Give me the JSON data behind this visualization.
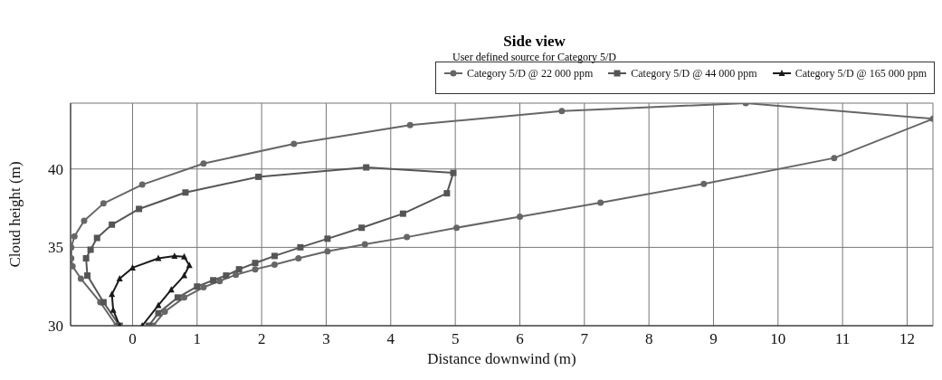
{
  "chart_data": {
    "type": "line",
    "title": "Side view",
    "subtitle": "User defined source for Category 5/D",
    "xlabel": "Distance downwind (m)",
    "ylabel": "Cloud height (m)",
    "xlim": [
      -0.96,
      12.4
    ],
    "ylim": [
      30,
      44.2
    ],
    "xticks": [
      0,
      1,
      2,
      3,
      4,
      5,
      6,
      7,
      8,
      9,
      10,
      11,
      12
    ],
    "yticks": [
      30,
      35,
      40
    ],
    "grid": true,
    "legend": "top right",
    "line_style": "solid",
    "series": [
      {
        "name": "Category 5/D @ 22 000 ppm",
        "color": "#666666",
        "marker": "circle",
        "x": [
          -0.25,
          -0.5,
          -0.8,
          -0.93,
          -0.95,
          -0.95,
          -0.9,
          -0.75,
          -0.45,
          0.15,
          1.1,
          2.5,
          4.3,
          6.65,
          9.5,
          12.4,
          10.87,
          8.85,
          7.25,
          6.0,
          5.02,
          4.25,
          3.6,
          3.02,
          2.57,
          2.2,
          1.9,
          1.6,
          1.35,
          1.1,
          0.8,
          0.5,
          0.32
        ],
        "values": [
          30,
          31.5,
          33,
          33.8,
          34.3,
          35,
          35.7,
          36.7,
          37.8,
          39,
          40.35,
          41.6,
          42.8,
          43.7,
          44.2,
          43.2,
          40.7,
          39.05,
          37.85,
          36.95,
          36.25,
          35.65,
          35.2,
          34.75,
          34.3,
          33.9,
          33.6,
          33.25,
          32.85,
          32.45,
          31.8,
          30.9,
          30
        ]
      },
      {
        "name": "Category 5/D @ 44 000 ppm",
        "color": "#555555",
        "marker": "square",
        "x": [
          -0.2,
          -0.45,
          -0.7,
          -0.72,
          -0.65,
          -0.55,
          -0.32,
          0.1,
          0.82,
          1.95,
          3.62,
          4.97,
          4.87,
          4.19,
          3.55,
          3.02,
          2.6,
          2.2,
          1.9,
          1.65,
          1.45,
          1.25,
          1.0,
          0.7,
          0.4,
          0.25
        ],
        "values": [
          30,
          31.5,
          33.2,
          34.3,
          34.85,
          35.6,
          36.45,
          37.45,
          38.5,
          39.5,
          40.1,
          39.75,
          38.45,
          37.15,
          36.25,
          35.55,
          35,
          34.45,
          34,
          33.6,
          33.2,
          32.9,
          32.5,
          31.8,
          30.8,
          30
        ]
      },
      {
        "name": "Category 5/D @ 165 000 ppm",
        "color": "#1a1a1a",
        "marker": "triangle",
        "x": [
          -0.2,
          -0.3,
          -0.32,
          -0.2,
          0,
          0.4,
          0.65,
          0.8,
          0.88,
          0.8,
          0.6,
          0.4,
          0.15
        ],
        "values": [
          30,
          31,
          32,
          33,
          33.7,
          34.3,
          34.45,
          34.4,
          33.85,
          33.2,
          32.3,
          31.3,
          30
        ]
      }
    ]
  }
}
